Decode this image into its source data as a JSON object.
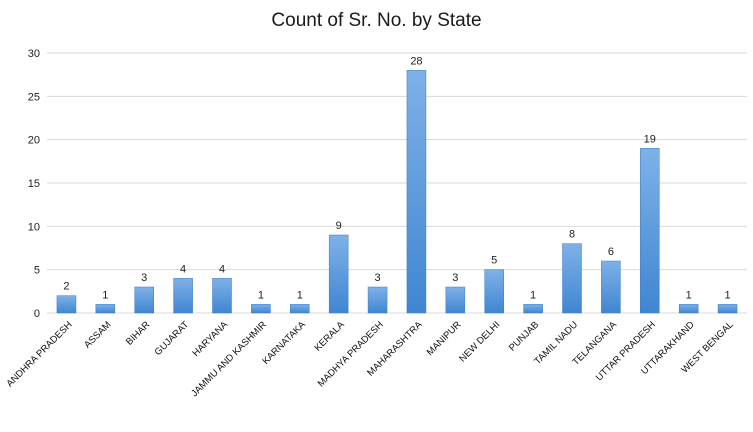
{
  "chart_data": {
    "type": "bar",
    "title": "Count of Sr. No. by State",
    "xlabel": "",
    "ylabel": "",
    "ylim": [
      0,
      30
    ],
    "yticks": [
      0,
      5,
      10,
      15,
      20,
      25,
      30
    ],
    "grid": true,
    "legend": "none",
    "bar_color": "#4a8fd6",
    "categories": [
      "ANDHRA PRADESH",
      "ASSAM",
      "BIHAR",
      "GUJARAT",
      "HARYANA",
      "JAMMU AND KASHMIR",
      "KARNATAKA",
      "KERALA",
      "MADHYA PRADESH",
      "MAHARASHTRA",
      "MANIPUR",
      "NEW DELHI",
      "PUNJAB",
      "TAMIL NADU",
      "TELANGANA",
      "UTTAR PRADESH",
      "UTTARAKHAND",
      "WEST BENGAL"
    ],
    "values": [
      2,
      1,
      3,
      4,
      4,
      1,
      1,
      9,
      3,
      28,
      3,
      5,
      1,
      8,
      6,
      19,
      1,
      1
    ]
  }
}
